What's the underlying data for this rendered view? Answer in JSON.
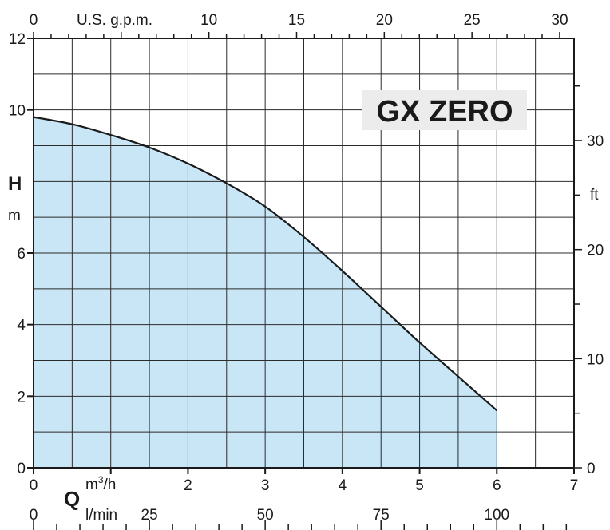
{
  "chart_data": {
    "type": "area",
    "title": "GX ZERO",
    "series": [
      {
        "name": "",
        "x": [
          0,
          0.5,
          1,
          1.5,
          2,
          2.5,
          3,
          3.5,
          4,
          4.5,
          5,
          5.5,
          6
        ],
        "y": [
          9.8,
          9.6,
          9.3,
          8.95,
          8.5,
          7.95,
          7.3,
          6.45,
          5.5,
          4.5,
          3.5,
          2.55,
          1.6
        ]
      }
    ],
    "fill_color": "#c8e6f6",
    "line_color": "#1a1a1a",
    "grid": true,
    "x_primary": {
      "label_symbol": "Q",
      "unit": "m³/h",
      "unit_base": "m",
      "unit_sup": "3",
      "unit_rest": "/h",
      "range": [
        0,
        7
      ],
      "ticks": [
        "0",
        "2",
        "3",
        "4",
        "5",
        "6",
        "7"
      ]
    },
    "x_secondary": {
      "unit": "l/min",
      "ticks": [
        "0",
        "25",
        "50",
        "75",
        "100"
      ]
    },
    "x_top": {
      "unit": "U.S. g.p.m.",
      "ticks": [
        "0",
        "10",
        "15",
        "20",
        "25",
        "30"
      ]
    },
    "y_primary": {
      "label_symbol": "H",
      "unit": "m",
      "range": [
        0,
        12
      ],
      "ticks": [
        "0",
        "2",
        "4",
        "6",
        "10",
        "12"
      ]
    },
    "y_right": {
      "unit": "ft",
      "ticks": [
        "0",
        "10",
        "20",
        "30"
      ]
    }
  }
}
